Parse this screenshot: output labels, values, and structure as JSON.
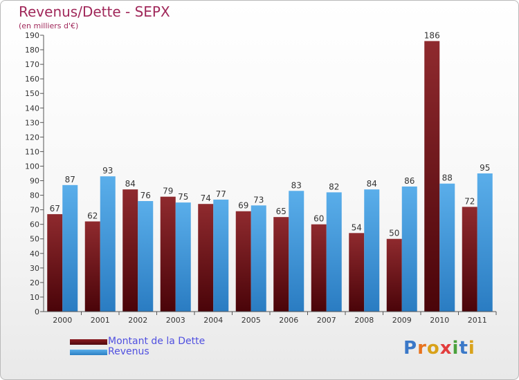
{
  "header": {
    "title": "Revenus/Dette - SEPX",
    "subtitle": "(en milliers d'€)"
  },
  "chart_data": {
    "type": "bar",
    "categories": [
      "2000",
      "2001",
      "2002",
      "2003",
      "2004",
      "2005",
      "2006",
      "2007",
      "2008",
      "2009",
      "2010",
      "2011"
    ],
    "series": [
      {
        "name": "Montant de la Dette",
        "color": "#6e0f14",
        "values": [
          67,
          62,
          84,
          79,
          74,
          69,
          65,
          60,
          54,
          50,
          186,
          72
        ]
      },
      {
        "name": "Revenus",
        "color": "#3c98de",
        "values": [
          87,
          93,
          76,
          75,
          77,
          73,
          83,
          82,
          84,
          86,
          88,
          95
        ]
      }
    ],
    "ylim": [
      0,
      190
    ],
    "ytick_step": 10,
    "yticks": [
      "0",
      "10",
      "20",
      "30",
      "40",
      "50",
      "60",
      "70",
      "80",
      "90",
      "100",
      "110",
      "120",
      "130",
      "140",
      "150",
      "160",
      "170",
      "180",
      "190"
    ],
    "grid": false,
    "data_labels": true,
    "legend_position": "bottom-left"
  },
  "legend": {
    "items": [
      {
        "label": "Montant de la Dette",
        "color": "#6e0f14"
      },
      {
        "label": "Revenus",
        "color": "#3c98de"
      }
    ]
  },
  "logo": {
    "text": "Proxiti",
    "letter_colors": [
      "#3a78c8",
      "#e8731e",
      "#d9a21a",
      "#e23d3d",
      "#4aa13c",
      "#3a78c8",
      "#d9a21a"
    ]
  }
}
